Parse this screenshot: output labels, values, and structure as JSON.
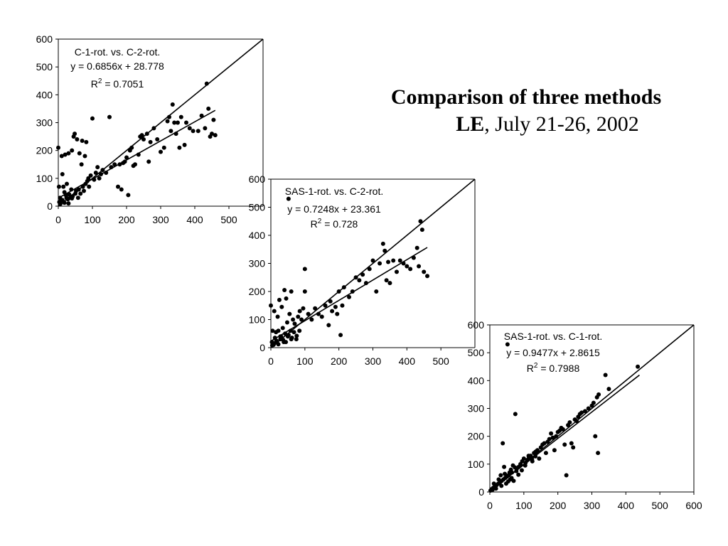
{
  "title": {
    "line1": "Comparison of three methods",
    "line2_bold": "LE",
    "line2_rest": ", July 21-26, 2002"
  },
  "chart_data": [
    {
      "type": "scatter",
      "xlim": [
        0,
        600
      ],
      "ylim": [
        0,
        600
      ],
      "xticks": [
        "0",
        "100",
        "200",
        "300",
        "400",
        "500"
      ],
      "yticks": [
        "0",
        "100",
        "200",
        "300",
        "400",
        "500",
        "600"
      ],
      "annotation": {
        "name": "C-1-rot. vs. C-2-rot.",
        "equation": "y = 0.6856x + 28.778",
        "r2_label": "R",
        "r2_sup": "2",
        "r2_value": " = 0.7051"
      },
      "fit": {
        "slope": 0.6856,
        "intercept": 28.778,
        "x_range": [
          0,
          460
        ]
      },
      "one_to_one": true,
      "points": [
        [
          0,
          210
        ],
        [
          2,
          70
        ],
        [
          5,
          30
        ],
        [
          8,
          20
        ],
        [
          10,
          180
        ],
        [
          12,
          115
        ],
        [
          15,
          70
        ],
        [
          18,
          50
        ],
        [
          20,
          185
        ],
        [
          22,
          40
        ],
        [
          25,
          80
        ],
        [
          28,
          25
        ],
        [
          30,
          10
        ],
        [
          30,
          190
        ],
        [
          35,
          30
        ],
        [
          38,
          60
        ],
        [
          40,
          200
        ],
        [
          42,
          35
        ],
        [
          45,
          250
        ],
        [
          48,
          260
        ],
        [
          50,
          45
        ],
        [
          52,
          55
        ],
        [
          55,
          240
        ],
        [
          58,
          30
        ],
        [
          60,
          60
        ],
        [
          62,
          190
        ],
        [
          65,
          45
        ],
        [
          68,
          150
        ],
        [
          70,
          235
        ],
        [
          72,
          70
        ],
        [
          75,
          55
        ],
        [
          78,
          180
        ],
        [
          80,
          80
        ],
        [
          82,
          230
        ],
        [
          85,
          90
        ],
        [
          88,
          100
        ],
        [
          90,
          70
        ],
        [
          95,
          110
        ],
        [
          100,
          315
        ],
        [
          105,
          95
        ],
        [
          110,
          120
        ],
        [
          115,
          140
        ],
        [
          120,
          100
        ],
        [
          125,
          115
        ],
        [
          130,
          130
        ],
        [
          140,
          120
        ],
        [
          150,
          320
        ],
        [
          155,
          140
        ],
        [
          165,
          150
        ],
        [
          175,
          70
        ],
        [
          180,
          150
        ],
        [
          185,
          60
        ],
        [
          190,
          155
        ],
        [
          195,
          160
        ],
        [
          200,
          175
        ],
        [
          205,
          40
        ],
        [
          210,
          200
        ],
        [
          215,
          210
        ],
        [
          220,
          145
        ],
        [
          225,
          150
        ],
        [
          235,
          185
        ],
        [
          240,
          250
        ],
        [
          245,
          255
        ],
        [
          250,
          240
        ],
        [
          260,
          260
        ],
        [
          265,
          160
        ],
        [
          270,
          230
        ],
        [
          280,
          280
        ],
        [
          290,
          240
        ],
        [
          300,
          195
        ],
        [
          310,
          210
        ],
        [
          320,
          305
        ],
        [
          325,
          320
        ],
        [
          330,
          270
        ],
        [
          335,
          365
        ],
        [
          340,
          300
        ],
        [
          345,
          260
        ],
        [
          350,
          300
        ],
        [
          355,
          210
        ],
        [
          360,
          320
        ],
        [
          370,
          220
        ],
        [
          375,
          300
        ],
        [
          385,
          280
        ],
        [
          395,
          270
        ],
        [
          410,
          270
        ],
        [
          420,
          325
        ],
        [
          430,
          280
        ],
        [
          435,
          440
        ],
        [
          440,
          350
        ],
        [
          445,
          250
        ],
        [
          450,
          260
        ],
        [
          455,
          310
        ],
        [
          460,
          255
        ],
        [
          3,
          15
        ],
        [
          6,
          8
        ],
        [
          12,
          22
        ],
        [
          18,
          12
        ],
        [
          24,
          30
        ],
        [
          32,
          42
        ],
        [
          40,
          28
        ]
      ]
    },
    {
      "type": "scatter",
      "xlim": [
        0,
        600
      ],
      "ylim": [
        0,
        600
      ],
      "xticks": [
        "0",
        "100",
        "200",
        "300",
        "400",
        "500"
      ],
      "yticks": [
        "0",
        "100",
        "200",
        "300",
        "400",
        "500",
        "600"
      ],
      "annotation": {
        "name": "SAS-1-rot. vs. C-2-rot.",
        "equation": "y = 0.7248x + 23.361",
        "r2_label": "R",
        "r2_sup": "2",
        "r2_value": " = 0.728"
      },
      "fit": {
        "slope": 0.7248,
        "intercept": 23.361,
        "x_range": [
          0,
          460
        ]
      },
      "one_to_one": true,
      "points": [
        [
          0,
          150
        ],
        [
          3,
          20
        ],
        [
          5,
          60
        ],
        [
          8,
          10
        ],
        [
          10,
          130
        ],
        [
          12,
          35
        ],
        [
          15,
          55
        ],
        [
          18,
          20
        ],
        [
          20,
          110
        ],
        [
          22,
          60
        ],
        [
          25,
          170
        ],
        [
          28,
          30
        ],
        [
          30,
          40
        ],
        [
          32,
          145
        ],
        [
          35,
          70
        ],
        [
          38,
          20
        ],
        [
          40,
          205
        ],
        [
          42,
          50
        ],
        [
          45,
          175
        ],
        [
          48,
          90
        ],
        [
          50,
          40
        ],
        [
          52,
          530
        ],
        [
          55,
          120
        ],
        [
          58,
          60
        ],
        [
          60,
          200
        ],
        [
          62,
          35
        ],
        [
          65,
          100
        ],
        [
          70,
          85
        ],
        [
          75,
          30
        ],
        [
          80,
          110
        ],
        [
          85,
          130
        ],
        [
          90,
          100
        ],
        [
          95,
          140
        ],
        [
          100,
          280
        ],
        [
          100,
          200
        ],
        [
          110,
          120
        ],
        [
          120,
          100
        ],
        [
          130,
          140
        ],
        [
          140,
          120
        ],
        [
          150,
          110
        ],
        [
          160,
          150
        ],
        [
          170,
          80
        ],
        [
          175,
          165
        ],
        [
          180,
          130
        ],
        [
          190,
          145
        ],
        [
          195,
          120
        ],
        [
          200,
          200
        ],
        [
          205,
          45
        ],
        [
          210,
          150
        ],
        [
          215,
          215
        ],
        [
          230,
          180
        ],
        [
          240,
          200
        ],
        [
          250,
          250
        ],
        [
          260,
          240
        ],
        [
          270,
          260
        ],
        [
          280,
          230
        ],
        [
          290,
          280
        ],
        [
          300,
          310
        ],
        [
          310,
          200
        ],
        [
          320,
          300
        ],
        [
          330,
          370
        ],
        [
          335,
          345
        ],
        [
          340,
          240
        ],
        [
          345,
          305
        ],
        [
          350,
          230
        ],
        [
          360,
          310
        ],
        [
          370,
          270
        ],
        [
          380,
          310
        ],
        [
          390,
          300
        ],
        [
          400,
          290
        ],
        [
          410,
          280
        ],
        [
          420,
          320
        ],
        [
          430,
          355
        ],
        [
          435,
          290
        ],
        [
          440,
          450
        ],
        [
          445,
          420
        ],
        [
          450,
          270
        ],
        [
          460,
          255
        ],
        [
          4,
          8
        ],
        [
          10,
          15
        ],
        [
          16,
          25
        ],
        [
          22,
          12
        ],
        [
          28,
          40
        ],
        [
          36,
          28
        ],
        [
          44,
          20
        ],
        [
          52,
          45
        ],
        [
          60,
          30
        ],
        [
          68,
          55
        ],
        [
          76,
          42
        ],
        [
          84,
          60
        ]
      ]
    },
    {
      "type": "scatter",
      "xlim": [
        0,
        600
      ],
      "ylim": [
        0,
        600
      ],
      "xticks": [
        "0",
        "100",
        "200",
        "300",
        "400",
        "500",
        "600"
      ],
      "yticks": [
        "0",
        "100",
        "200",
        "300",
        "400",
        "500",
        "600"
      ],
      "annotation": {
        "name": "SAS-1-rot. vs. C-1-rot.",
        "equation": "y = 0.9477x + 2.8615",
        "r2_label": "R",
        "r2_sup": "2",
        "r2_value": " = 0.7988"
      },
      "fit": {
        "slope": 0.9477,
        "intercept": 2.8615,
        "x_range": [
          0,
          440
        ]
      },
      "one_to_one": true,
      "points": [
        [
          2,
          5
        ],
        [
          5,
          10
        ],
        [
          8,
          8
        ],
        [
          10,
          15
        ],
        [
          15,
          20
        ],
        [
          20,
          25
        ],
        [
          25,
          30
        ],
        [
          30,
          35
        ],
        [
          32,
          60
        ],
        [
          35,
          40
        ],
        [
          38,
          175
        ],
        [
          40,
          45
        ],
        [
          42,
          90
        ],
        [
          45,
          50
        ],
        [
          48,
          30
        ],
        [
          50,
          55
        ],
        [
          52,
          530
        ],
        [
          55,
          60
        ],
        [
          58,
          70
        ],
        [
          60,
          45
        ],
        [
          62,
          80
        ],
        [
          65,
          70
        ],
        [
          68,
          95
        ],
        [
          70,
          40
        ],
        [
          75,
          280
        ],
        [
          78,
          75
        ],
        [
          80,
          85
        ],
        [
          85,
          90
        ],
        [
          90,
          100
        ],
        [
          95,
          110
        ],
        [
          100,
          120
        ],
        [
          105,
          105
        ],
        [
          110,
          115
        ],
        [
          115,
          125
        ],
        [
          120,
          130
        ],
        [
          125,
          110
        ],
        [
          130,
          140
        ],
        [
          135,
          145
        ],
        [
          140,
          150
        ],
        [
          145,
          120
        ],
        [
          150,
          160
        ],
        [
          155,
          170
        ],
        [
          160,
          175
        ],
        [
          165,
          140
        ],
        [
          170,
          180
        ],
        [
          175,
          190
        ],
        [
          180,
          210
        ],
        [
          185,
          195
        ],
        [
          190,
          150
        ],
        [
          195,
          200
        ],
        [
          200,
          215
        ],
        [
          205,
          220
        ],
        [
          210,
          230
        ],
        [
          215,
          225
        ],
        [
          220,
          170
        ],
        [
          225,
          60
        ],
        [
          230,
          240
        ],
        [
          235,
          250
        ],
        [
          240,
          175
        ],
        [
          245,
          160
        ],
        [
          250,
          260
        ],
        [
          255,
          255
        ],
        [
          260,
          270
        ],
        [
          265,
          280
        ],
        [
          270,
          285
        ],
        [
          280,
          290
        ],
        [
          290,
          300
        ],
        [
          300,
          310
        ],
        [
          305,
          320
        ],
        [
          310,
          200
        ],
        [
          315,
          340
        ],
        [
          318,
          140
        ],
        [
          320,
          350
        ],
        [
          340,
          420
        ],
        [
          350,
          370
        ],
        [
          435,
          450
        ],
        [
          12,
          30
        ],
        [
          18,
          12
        ],
        [
          26,
          45
        ],
        [
          34,
          22
        ],
        [
          44,
          65
        ],
        [
          54,
          38
        ],
        [
          64,
          50
        ],
        [
          74,
          88
        ],
        [
          84,
          62
        ],
        [
          94,
          78
        ],
        [
          104,
          95
        ],
        [
          114,
          130
        ],
        [
          124,
          118
        ],
        [
          134,
          128
        ]
      ]
    }
  ]
}
